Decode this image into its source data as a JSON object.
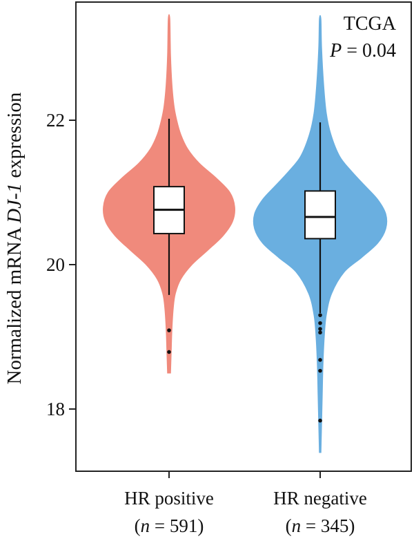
{
  "chart_data": {
    "type": "violin",
    "title": "",
    "ylabel": {
      "prefix": "Normalized mRNA ",
      "gene": "DJ-1",
      "suffix": " expression"
    },
    "ylim": [
      17.0,
      23.6
    ],
    "yticks": [
      18,
      20,
      22
    ],
    "annotations": {
      "dataset": "TCGA",
      "p_label": "P",
      "p_value": "= 0.04"
    },
    "groups": [
      {
        "name": "HR positive",
        "n_label": "n",
        "n_value": "= 591",
        "color": "#f08a7c",
        "box": {
          "whisker_low": 19.58,
          "q1": 20.43,
          "median": 20.76,
          "q3": 21.08,
          "whisker_high": 22.02
        },
        "outliers": [
          19.09,
          18.79
        ],
        "density": [
          [
            18.5,
            2
          ],
          [
            18.8,
            3
          ],
          [
            19.1,
            4
          ],
          [
            19.4,
            6
          ],
          [
            19.6,
            9
          ],
          [
            19.8,
            17
          ],
          [
            20.0,
            33
          ],
          [
            20.2,
            56
          ],
          [
            20.4,
            78
          ],
          [
            20.6,
            92
          ],
          [
            20.8,
            95
          ],
          [
            21.0,
            88
          ],
          [
            21.2,
            68
          ],
          [
            21.4,
            44
          ],
          [
            21.6,
            27
          ],
          [
            21.8,
            17
          ],
          [
            22.0,
            11
          ],
          [
            22.2,
            7
          ],
          [
            22.5,
            4
          ],
          [
            22.9,
            2
          ],
          [
            23.4,
            1
          ]
        ]
      },
      {
        "name": "HR negative",
        "n_label": "n",
        "n_value": "= 345",
        "color": "#6aafe0",
        "box": {
          "whisker_low": 19.33,
          "q1": 20.36,
          "median": 20.66,
          "q3": 21.02,
          "whisker_high": 21.97
        },
        "outliers": [
          19.3,
          19.19,
          19.11,
          19.06,
          18.68,
          18.53,
          17.84
        ],
        "density": [
          [
            17.4,
            1
          ],
          [
            17.8,
            2
          ],
          [
            18.2,
            3
          ],
          [
            18.6,
            4
          ],
          [
            19.0,
            6
          ],
          [
            19.3,
            9
          ],
          [
            19.6,
            17
          ],
          [
            19.9,
            36
          ],
          [
            20.1,
            62
          ],
          [
            20.3,
            86
          ],
          [
            20.5,
            98
          ],
          [
            20.7,
            98
          ],
          [
            20.9,
            86
          ],
          [
            21.1,
            66
          ],
          [
            21.3,
            46
          ],
          [
            21.5,
            29
          ],
          [
            21.8,
            16
          ],
          [
            22.1,
            9
          ],
          [
            22.5,
            5
          ],
          [
            23.0,
            2
          ],
          [
            23.4,
            1
          ]
        ]
      }
    ],
    "grid": false,
    "legend": "none"
  }
}
